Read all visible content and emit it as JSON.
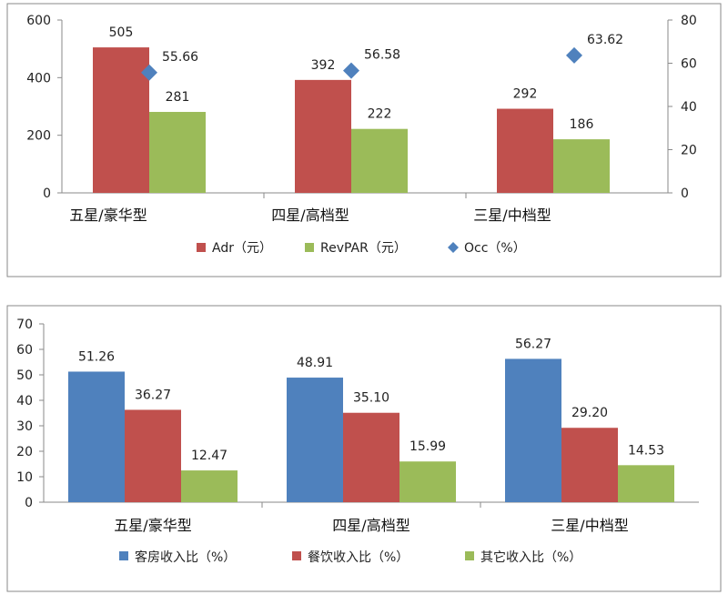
{
  "chart_data": [
    {
      "type": "bar",
      "categories": [
        "五星/豪华型",
        "四星/高档型",
        "三星/中档型"
      ],
      "series": [
        {
          "name": "Adr（元）",
          "values": [
            505,
            392,
            292
          ],
          "color": "#c0504d",
          "axis": "left",
          "kind": "bar"
        },
        {
          "name": "RevPAR（元）",
          "values": [
            281,
            222,
            186
          ],
          "color": "#9bbb59",
          "axis": "left",
          "kind": "bar"
        },
        {
          "name": "Occ（%）",
          "values": [
            55.66,
            56.58,
            63.62
          ],
          "color": "#4f81bd",
          "axis": "right",
          "kind": "marker"
        }
      ],
      "data_labels": {
        "series_0": [
          "505",
          "392",
          "292"
        ],
        "series_1": [
          "281",
          "222",
          "186"
        ],
        "series_2": [
          "55.66",
          "56.58",
          "63.62"
        ]
      },
      "ylim": [
        0,
        600
      ],
      "yticks": [
        "0",
        "200",
        "400",
        "600"
      ],
      "y2lim": [
        0,
        80
      ],
      "y2ticks": [
        "0",
        "20",
        "40",
        "60",
        "80"
      ],
      "grid": false,
      "legend": "bottom"
    },
    {
      "type": "bar",
      "categories": [
        "五星/豪华型",
        "四星/高档型",
        "三星/中档型"
      ],
      "series": [
        {
          "name": "客房收入比（%）",
          "values": [
            51.26,
            48.91,
            56.27
          ],
          "color": "#4f81bd",
          "kind": "bar"
        },
        {
          "name": "餐饮收入比（%）",
          "values": [
            36.27,
            35.1,
            29.2
          ],
          "color": "#c0504d",
          "kind": "bar"
        },
        {
          "name": "其它收入比（%）",
          "values": [
            12.47,
            15.99,
            14.53
          ],
          "color": "#9bbb59",
          "kind": "bar"
        }
      ],
      "data_labels": {
        "series_0": [
          "51.26",
          "48.91",
          "56.27"
        ],
        "series_1": [
          "36.27",
          "35.10",
          "29.20"
        ],
        "series_2": [
          "12.47",
          "15.99",
          "14.53"
        ]
      },
      "ylim": [
        0,
        70
      ],
      "yticks": [
        "0",
        "10",
        "20",
        "30",
        "40",
        "50",
        "60",
        "70"
      ],
      "grid": false,
      "legend": "bottom"
    }
  ]
}
